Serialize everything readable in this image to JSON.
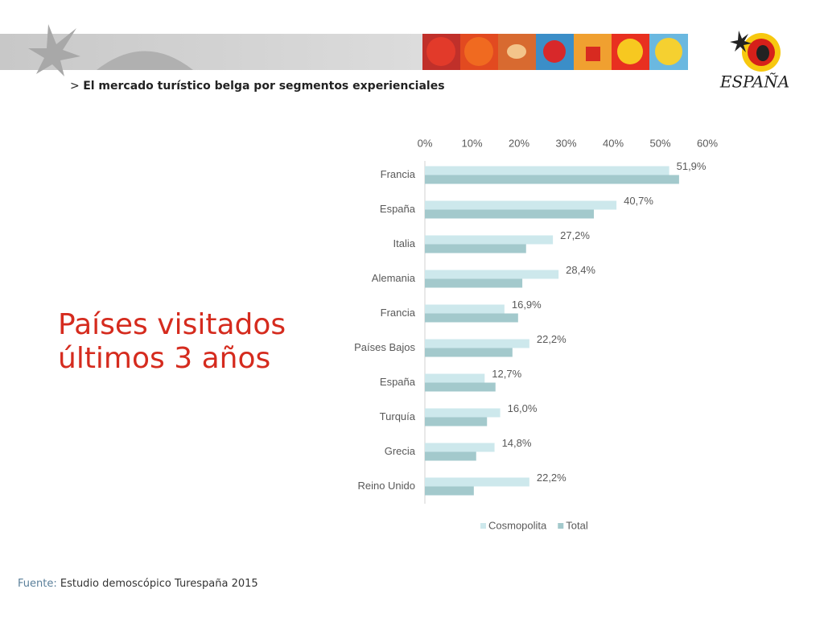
{
  "header": {
    "marker": ">",
    "title": "El mercado turístico belga por segmentos experienciales",
    "logo_text": "ESPAÑA"
  },
  "slide_title": "Países visitados últimos 3 años",
  "footer": {
    "label": "Fuente:",
    "text": "Estudio demoscópico Turespaña 2015"
  },
  "chart_data": {
    "type": "hbar",
    "categories": [
      "Francia",
      "España",
      "Italia",
      "Alemania",
      "Francia",
      "Países Bajos",
      "España",
      "Turquía",
      "Grecia",
      "Reino Unido"
    ],
    "series": [
      {
        "name": "Cosmopolita",
        "color": "#cde8ec",
        "values": [
          51.9,
          40.7,
          27.2,
          28.4,
          16.9,
          22.2,
          12.7,
          16.0,
          14.8,
          22.2
        ],
        "value_labels": [
          "51,9%",
          "40,7%",
          "27,2%",
          "28,4%",
          "16,9%",
          "22,2%",
          "12,7%",
          "16,0%",
          "14,8%",
          "22,2%"
        ]
      },
      {
        "name": "Total",
        "color": "#a3c9cc",
        "values": [
          54.0,
          35.9,
          21.5,
          20.7,
          19.8,
          18.6,
          15.0,
          13.2,
          10.9,
          10.4
        ]
      }
    ],
    "xlim": [
      0,
      60
    ],
    "xticks": [
      {
        "value": 0,
        "label": "0%"
      },
      {
        "value": 10,
        "label": "10%"
      },
      {
        "value": 20,
        "label": "20%"
      },
      {
        "value": 30,
        "label": "30%"
      },
      {
        "value": 40,
        "label": "40%"
      },
      {
        "value": 50,
        "label": "50%"
      },
      {
        "value": 60,
        "label": "60%"
      }
    ],
    "legend": "bottom"
  }
}
